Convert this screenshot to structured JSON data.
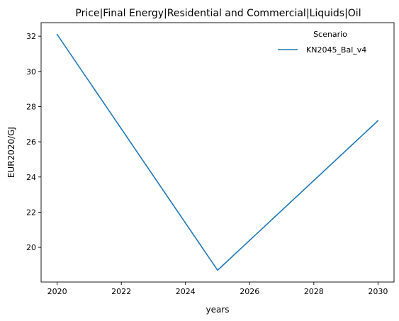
{
  "chart_data": {
    "type": "line",
    "title": "Price|Final Energy|Residential and Commercial|Liquids|Oil",
    "xlabel": "years",
    "ylabel": "EUR2020/GJ",
    "x_ticks": [
      2020,
      2022,
      2024,
      2026,
      2028,
      2030
    ],
    "y_ticks": [
      20,
      22,
      24,
      26,
      28,
      30,
      32
    ],
    "xlim": [
      2019.5,
      2030.5
    ],
    "ylim": [
      18.03,
      32.77
    ],
    "grid": false,
    "legend": {
      "title": "Scenario",
      "placement": "top-right"
    },
    "series": [
      {
        "name": "KN2045_Bal_v4",
        "color": "#1f77b4",
        "x": [
          2020,
          2025,
          2030
        ],
        "y": [
          32.1,
          18.7,
          27.2
        ]
      }
    ]
  }
}
